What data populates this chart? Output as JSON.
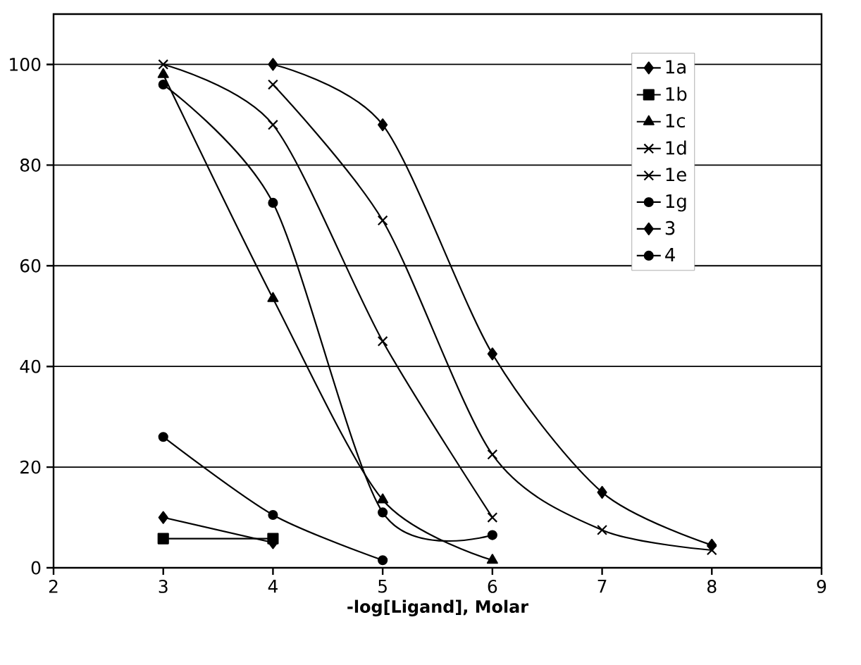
{
  "chart_data": {
    "type": "line",
    "xlabel": "-log[Ligand], Molar",
    "xlim": [
      2,
      9
    ],
    "xticks": [
      2,
      3,
      4,
      5,
      6,
      7,
      8,
      9
    ],
    "ylim": [
      0,
      110
    ],
    "yticks": [
      0,
      20,
      40,
      60,
      80,
      100
    ],
    "grid": "y",
    "legend": "top right",
    "line_style": "solid",
    "series": [
      {
        "name": "1a",
        "color": "#000000",
        "marker": "diamond",
        "x": [
          4,
          5,
          6,
          7,
          8
        ],
        "values": [
          100,
          88,
          42.5,
          15,
          4.5
        ]
      },
      {
        "name": "1b",
        "color": "#000000",
        "marker": "square",
        "x": [
          3,
          4
        ],
        "values": [
          5.8,
          5.8
        ]
      },
      {
        "name": "1c",
        "color": "#000000",
        "marker": "triangle",
        "x": [
          3,
          4,
          5,
          6
        ],
        "values": [
          98,
          53.5,
          13.5,
          1.5
        ]
      },
      {
        "name": "1d",
        "color": "#000000",
        "marker": "cross",
        "x": [
          4,
          5,
          6,
          7,
          8
        ],
        "values": [
          96,
          69,
          22.5,
          7.5,
          3.5
        ]
      },
      {
        "name": "1e",
        "color": "#000000",
        "marker": "cross",
        "x": [
          3,
          4,
          5,
          6
        ],
        "values": [
          100,
          88,
          45,
          10
        ]
      },
      {
        "name": "1g",
        "color": "#000000",
        "marker": "circle",
        "x": [
          3,
          4,
          5,
          6
        ],
        "values": [
          96,
          72.5,
          11,
          6.5
        ]
      },
      {
        "name": "3",
        "color": "#000000",
        "marker": "diamond",
        "x": [
          3,
          4
        ],
        "values": [
          10,
          5
        ]
      },
      {
        "name": "4",
        "color": "#000000",
        "marker": "circle",
        "x": [
          3,
          4,
          5
        ],
        "values": [
          26,
          10.5,
          1.5
        ]
      }
    ]
  }
}
